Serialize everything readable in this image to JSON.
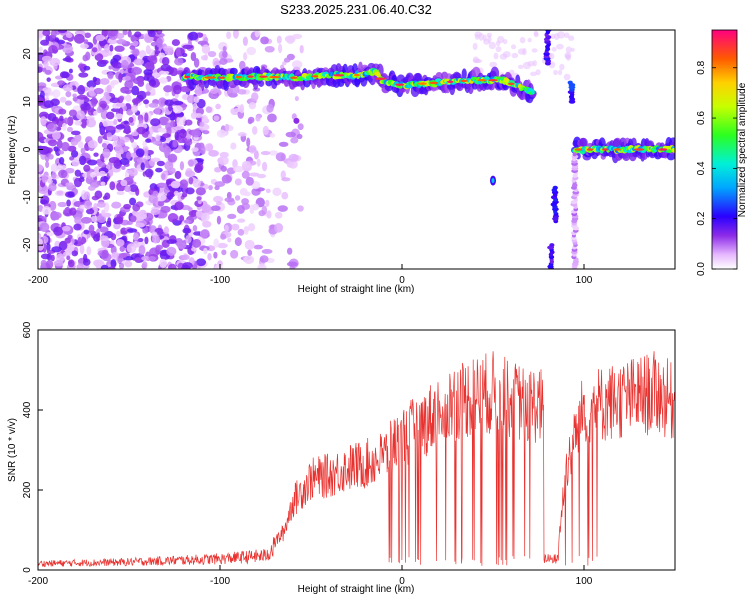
{
  "chart_data": [
    {
      "type": "heatmap",
      "title": "S233.2025.231.06.40.C32",
      "xlabel": "Height of straight line (km)",
      "ylabel": "Frequency (Hz)",
      "xlim": [
        -200,
        150
      ],
      "ylim": [
        -25,
        25
      ],
      "xticks": [
        -200,
        -100,
        0,
        100
      ],
      "yticks": [
        20,
        10,
        0,
        -10,
        -20
      ],
      "colorbar": {
        "label": "Normalized spectral amplitude",
        "range": [
          0.0,
          0.95
        ],
        "ticks": [
          0.0,
          0.2,
          0.4,
          0.6,
          0.8
        ]
      },
      "ridges": [
        {
          "name": "upper-band",
          "points": [
            [
              -120,
              15.2
            ],
            [
              -100,
              15.0
            ],
            [
              -80,
              15.3
            ],
            [
              -60,
              15.0
            ],
            [
              -40,
              15.5
            ],
            [
              -20,
              15.6
            ],
            [
              -15,
              16.5
            ],
            [
              -10,
              14.0
            ],
            [
              0,
              13.5
            ],
            [
              20,
              14.0
            ],
            [
              40,
              14.5
            ],
            [
              55,
              14.5
            ],
            [
              65,
              13.0
            ],
            [
              72,
              12.0
            ]
          ]
        },
        {
          "name": "lower-band",
          "points": [
            [
              95,
              0.0
            ],
            [
              110,
              0.0
            ],
            [
              130,
              0.0
            ],
            [
              150,
              0.0
            ]
          ]
        }
      ]
    },
    {
      "type": "line",
      "xlabel": "Height of straight line (km)",
      "ylabel": "SNR (10 * v/v)",
      "xlim": [
        -200,
        150
      ],
      "ylim": [
        0,
        600
      ],
      "xticks": [
        -200,
        -100,
        0,
        100
      ],
      "yticks": [
        0,
        200,
        400,
        600
      ],
      "series": [
        {
          "name": "SNR",
          "color": "#e8322f",
          "envelope": [
            [
              -200,
              20
            ],
            [
              -150,
              25
            ],
            [
              -100,
              35
            ],
            [
              -75,
              45
            ],
            [
              -65,
              100
            ],
            [
              -60,
              180
            ],
            [
              -50,
              240
            ],
            [
              -40,
              250
            ],
            [
              -30,
              270
            ],
            [
              -20,
              280
            ],
            [
              -10,
              300
            ],
            [
              0,
              350
            ],
            [
              10,
              380
            ],
            [
              20,
              420
            ],
            [
              30,
              450
            ],
            [
              40,
              460
            ],
            [
              50,
              470
            ],
            [
              60,
              450
            ],
            [
              70,
              440
            ],
            [
              80,
              430
            ],
            [
              85,
              20
            ],
            [
              90,
              270
            ],
            [
              95,
              350
            ],
            [
              100,
              430
            ],
            [
              110,
              440
            ],
            [
              120,
              450
            ],
            [
              130,
              460
            ],
            [
              140,
              470
            ],
            [
              150,
              440
            ]
          ]
        }
      ]
    }
  ]
}
